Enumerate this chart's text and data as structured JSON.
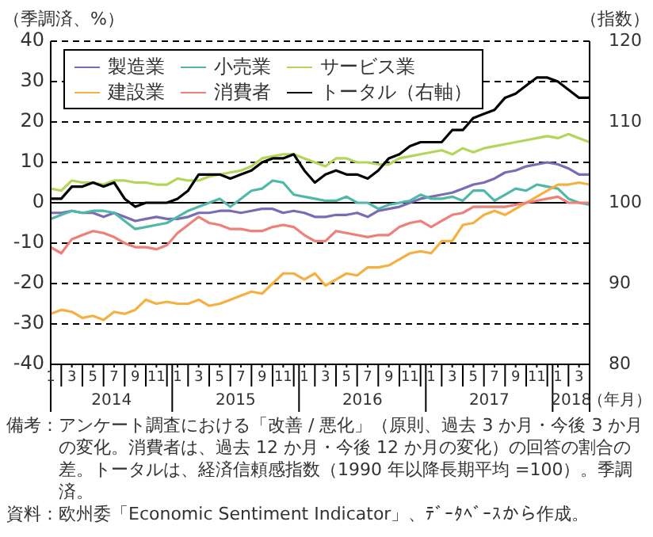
{
  "chart_data": {
    "type": "line",
    "ylabel": "（季調済、%）",
    "y2label": "（指数）",
    "xlabel": "（年月）",
    "x": [
      "2014-01",
      "2014-02",
      "2014-03",
      "2014-04",
      "2014-05",
      "2014-06",
      "2014-07",
      "2014-08",
      "2014-09",
      "2014-10",
      "2014-11",
      "2014-12",
      "2015-01",
      "2015-02",
      "2015-03",
      "2015-04",
      "2015-05",
      "2015-06",
      "2015-07",
      "2015-08",
      "2015-09",
      "2015-10",
      "2015-11",
      "2015-12",
      "2016-01",
      "2016-02",
      "2016-03",
      "2016-04",
      "2016-05",
      "2016-06",
      "2016-07",
      "2016-08",
      "2016-09",
      "2016-10",
      "2016-11",
      "2016-12",
      "2017-01",
      "2017-02",
      "2017-03",
      "2017-04",
      "2017-05",
      "2017-06",
      "2017-07",
      "2017-08",
      "2017-09",
      "2017-10",
      "2017-11",
      "2017-12",
      "2018-01",
      "2018-02",
      "2018-03",
      "2018-04"
    ],
    "series": [
      {
        "name": "製造業",
        "color": "#7b6bb5",
        "values": [
          -2.5,
          -2.5,
          -2,
          -2.5,
          -2.5,
          -3.5,
          -2.5,
          -3.5,
          -4.5,
          -4,
          -3.5,
          -4,
          -4,
          -3.5,
          -2.5,
          -2.5,
          -2,
          -2,
          -2.5,
          -2,
          -1.5,
          -1.5,
          -2.5,
          -2,
          -2.5,
          -3.5,
          -3.5,
          -3,
          -3,
          -2.5,
          -3.5,
          -2,
          -1.5,
          -1,
          0,
          1,
          1.5,
          2,
          2.5,
          3.5,
          4.5,
          5,
          6,
          7.5,
          8,
          9,
          9.5,
          10,
          9.5,
          8.5,
          7,
          7
        ]
      },
      {
        "name": "小売業",
        "color": "#4fb8a8",
        "values": [
          -4,
          -3,
          -2,
          -2.5,
          -2,
          -2,
          -2.5,
          -4.5,
          -6.5,
          -6,
          -5.5,
          -5,
          -3.5,
          -2,
          -1,
          0,
          1,
          -1,
          1,
          3,
          3.5,
          5.5,
          5,
          2,
          1.5,
          1,
          0.5,
          0.5,
          1.5,
          0,
          0,
          -1.5,
          -0.5,
          0,
          0.5,
          2,
          1,
          1,
          1.5,
          0.5,
          3,
          3,
          0.5,
          2,
          3.5,
          3,
          4.5,
          4,
          3.5,
          1,
          0,
          -0.5
        ]
      },
      {
        "name": "サービス業",
        "color": "#b5d55a",
        "values": [
          3.5,
          3,
          5.5,
          5,
          5,
          4.5,
          5.5,
          5.5,
          5,
          5,
          4.5,
          4.5,
          6,
          5.5,
          5.5,
          6.5,
          7,
          7.5,
          8,
          9,
          11,
          11.5,
          12,
          12,
          11,
          10,
          9,
          11,
          11,
          10,
          10,
          9.5,
          9.5,
          11,
          11.5,
          12,
          12.5,
          13,
          12,
          13.5,
          12.5,
          13.5,
          14,
          14.5,
          15,
          15.5,
          16,
          16.5,
          16,
          17,
          16,
          15
        ]
      },
      {
        "name": "建設業",
        "color": "#f5b041",
        "values": [
          -27.5,
          -26.5,
          -27,
          -28.5,
          -28,
          -29,
          -27,
          -27.5,
          -26.5,
          -24,
          -25,
          -24.5,
          -25,
          -25,
          -24,
          -25.5,
          -25,
          -24,
          -23,
          -22,
          -22.5,
          -20,
          -17.5,
          -17.5,
          -19,
          -17.5,
          -20.5,
          -19,
          -17.5,
          -18,
          -16,
          -16,
          -15.5,
          -14,
          -12.5,
          -12,
          -12.5,
          -9.5,
          -9.5,
          -5.5,
          -5,
          -3,
          -2,
          -3,
          -1.5,
          0,
          1.5,
          3,
          4.5,
          4.5,
          5,
          4.5
        ]
      },
      {
        "name": "消費者",
        "color": "#ef7f79",
        "values": [
          -11,
          -12.5,
          -9,
          -8,
          -7,
          -7.5,
          -8.5,
          -10,
          -11,
          -11,
          -11.5,
          -10.5,
          -7.5,
          -5.5,
          -3.5,
          -5,
          -5.5,
          -6.5,
          -6.5,
          -7,
          -7,
          -6,
          -5.5,
          -6,
          -8,
          -9.5,
          -9.5,
          -7,
          -7.5,
          -8,
          -8.5,
          -8,
          -8,
          -6,
          -5,
          -4.5,
          -6,
          -4.5,
          -3,
          -2.5,
          -1,
          -1,
          -1,
          -1,
          -0.5,
          0,
          0.5,
          1,
          1.5,
          0,
          0,
          0
        ]
      },
      {
        "name": "トータル（右軸）",
        "color": "#000000",
        "axis": "y2",
        "values": [
          100.5,
          100.5,
          102,
          102,
          102.5,
          102,
          102.5,
          100.5,
          99.5,
          100,
          100,
          100,
          100.5,
          101.5,
          103.5,
          103.5,
          103.5,
          103,
          103.5,
          104,
          105,
          105.5,
          105.5,
          106,
          104,
          102.5,
          103.5,
          104,
          103.5,
          103.5,
          103,
          104,
          105.5,
          106,
          107,
          107.5,
          107.5,
          107.5,
          109,
          109,
          110.5,
          111,
          111.5,
          113,
          113.5,
          114.5,
          115.5,
          115.5,
          115,
          114,
          113,
          113
        ]
      }
    ],
    "xlim": [
      "2014-01",
      "2018-04"
    ],
    "xticks": [
      {
        "value": "2014-01",
        "label": "1"
      },
      {
        "value": "2014-02",
        "label": null
      },
      {
        "value": "2014-03",
        "label": "3"
      },
      {
        "value": "2014-04",
        "label": null
      },
      {
        "value": "2014-05",
        "label": "5"
      },
      {
        "value": "2014-06",
        "label": null
      },
      {
        "value": "2014-07",
        "label": "7"
      },
      {
        "value": "2014-08",
        "label": null
      },
      {
        "value": "2014-09",
        "label": "9"
      },
      {
        "value": "2014-10",
        "label": null
      },
      {
        "value": "2014-11",
        "label": "11"
      },
      {
        "value": "2014-12",
        "label": null
      },
      {
        "value": "2015-01",
        "label": "1"
      },
      {
        "value": "2015-02",
        "label": null
      },
      {
        "value": "2015-03",
        "label": "3"
      },
      {
        "value": "2015-04",
        "label": null
      },
      {
        "value": "2015-05",
        "label": "5"
      },
      {
        "value": "2015-06",
        "label": null
      },
      {
        "value": "2015-07",
        "label": "7"
      },
      {
        "value": "2015-08",
        "label": null
      },
      {
        "value": "2015-09",
        "label": "9"
      },
      {
        "value": "2015-10",
        "label": null
      },
      {
        "value": "2015-11",
        "label": "11"
      },
      {
        "value": "2015-12",
        "label": null
      },
      {
        "value": "2016-01",
        "label": "1"
      },
      {
        "value": "2016-02",
        "label": null
      },
      {
        "value": "2016-03",
        "label": "3"
      },
      {
        "value": "2016-04",
        "label": null
      },
      {
        "value": "2016-05",
        "label": "5"
      },
      {
        "value": "2016-06",
        "label": null
      },
      {
        "value": "2016-07",
        "label": "7"
      },
      {
        "value": "2016-08",
        "label": null
      },
      {
        "value": "2016-09",
        "label": "9"
      },
      {
        "value": "2016-10",
        "label": null
      },
      {
        "value": "2016-11",
        "label": "11"
      },
      {
        "value": "2016-12",
        "label": null
      },
      {
        "value": "2017-01",
        "label": "1"
      },
      {
        "value": "2017-02",
        "label": null
      },
      {
        "value": "2017-03",
        "label": "3"
      },
      {
        "value": "2017-04",
        "label": null
      },
      {
        "value": "2017-05",
        "label": "5"
      },
      {
        "value": "2017-06",
        "label": null
      },
      {
        "value": "2017-07",
        "label": "7"
      },
      {
        "value": "2017-08",
        "label": null
      },
      {
        "value": "2017-09",
        "label": "9"
      },
      {
        "value": "2017-10",
        "label": null
      },
      {
        "value": "2017-11",
        "label": "11"
      },
      {
        "value": "2017-12",
        "label": null
      },
      {
        "value": "2018-01",
        "label": "1"
      },
      {
        "value": "2018-02",
        "label": null
      },
      {
        "value": "2018-03",
        "label": "3"
      },
      {
        "value": "2018-04",
        "label": null
      }
    ],
    "ylim": [
      -40,
      40
    ],
    "yticks": [
      -40,
      -30,
      -20,
      -10,
      0,
      10,
      20,
      30,
      40
    ],
    "y2lim": [
      80,
      120
    ],
    "y2ticks": [
      80,
      90,
      100,
      110,
      120
    ],
    "grid": "y",
    "legend": "top left",
    "marker": "none",
    "line_style": "solid",
    "annotations": [
      "2014",
      "2015",
      "2016",
      "2017",
      "2018",
      "備考：アンケート調査における「改善 / 悪化」（原則、過去 3 か月・今後 3 か月の変化。消費者は、過去 12 か月・今後 12 か月の変化）の回答の割合の差。トータルは、経済信頼感指数（1990 年以降長期平均 =100）。季調済。",
      "資料：欧州委「Economic Sentiment Indicator」、ﾃﾞｰﾀﾍﾞｰｽから作成。"
    ]
  }
}
